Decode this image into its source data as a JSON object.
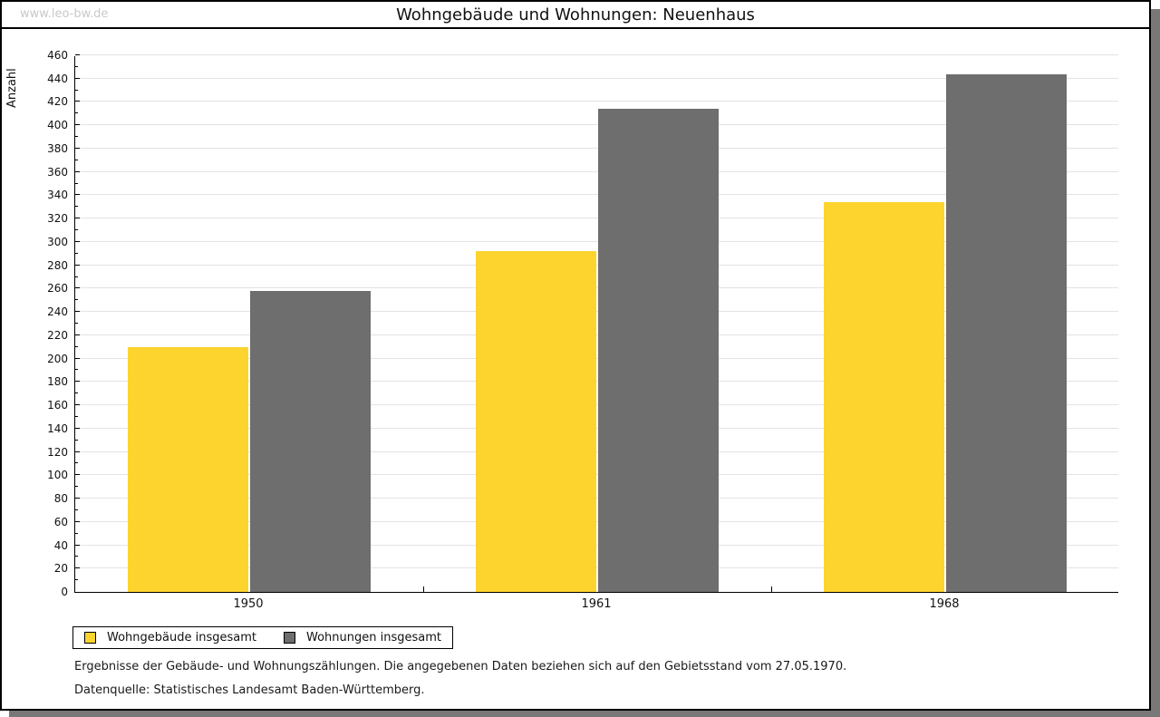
{
  "watermark": "www.leo-bw.de",
  "title": "Wohngebäude und Wohnungen: Neuenhaus",
  "chart_data": {
    "type": "bar",
    "title": "Wohngebäude und Wohnungen: Neuenhaus",
    "categories": [
      "1950",
      "1961",
      "1968"
    ],
    "series": [
      {
        "name": "Wohngebäude insgesamt",
        "color": "#FDD42E",
        "values": [
          210,
          292,
          334
        ]
      },
      {
        "name": "Wohnungen insgesamt",
        "color": "#6E6E6E",
        "values": [
          258,
          414,
          444
        ]
      }
    ],
    "xlabel": "",
    "ylabel": "Anzahl",
    "ylim": [
      0,
      460
    ],
    "ytick_step": 20,
    "ytick_minor_step": 10,
    "grid": true,
    "legend_position": "bottom-left"
  },
  "footer": {
    "note": "Ergebnisse der Gebäude- und Wohnungszählungen. Die angegebenen Daten beziehen sich auf den Gebietsstand vom 27.05.1970.",
    "source": "Datenquelle: Statistisches Landesamt Baden-Württemberg."
  },
  "colors": {
    "series1": "#FDD42E",
    "series2": "#6E6E6E",
    "gridline": "#e3e3e3",
    "frame_border": "#000000",
    "frame_shadow": "#787878",
    "watermark": "#c9c9c9"
  }
}
